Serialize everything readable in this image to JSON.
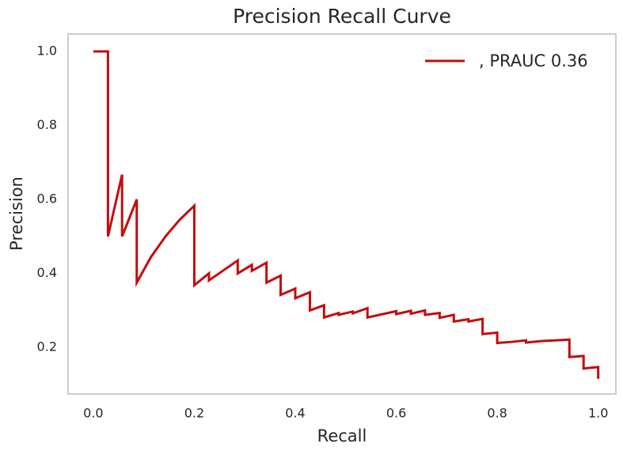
{
  "chart_data": {
    "type": "line",
    "title": "Precision Recall Curve",
    "xlabel": "Recall",
    "ylabel": "Precision",
    "x": [
      0,
      0.029,
      0.029,
      0.057,
      0.057,
      0.086,
      0.086,
      0.114,
      0.143,
      0.171,
      0.2,
      0.2,
      0.229,
      0.229,
      0.286,
      0.286,
      0.314,
      0.314,
      0.343,
      0.343,
      0.371,
      0.371,
      0.4,
      0.4,
      0.429,
      0.429,
      0.457,
      0.457,
      0.486,
      0.486,
      0.514,
      0.514,
      0.543,
      0.543,
      0.6,
      0.6,
      0.629,
      0.629,
      0.657,
      0.657,
      0.686,
      0.686,
      0.714,
      0.714,
      0.743,
      0.743,
      0.771,
      0.771,
      0.8,
      0.8,
      0.829,
      0.857,
      0.857,
      0.886,
      0.943,
      0.943,
      0.971,
      0.971,
      1.0,
      1.0
    ],
    "series": [
      {
        "name": ", PRAUC 0.36",
        "color": "#c40c0c",
        "values": [
          1,
          1,
          0.5,
          0.667,
          0.5,
          0.6,
          0.375,
          0.444,
          0.5,
          0.545,
          0.583,
          0.368,
          0.4,
          0.381,
          0.435,
          0.4,
          0.423,
          0.407,
          0.429,
          0.375,
          0.394,
          0.342,
          0.359,
          0.333,
          0.349,
          0.3,
          0.314,
          0.281,
          0.293,
          0.288,
          0.297,
          0.292,
          0.306,
          0.281,
          0.298,
          0.29,
          0.299,
          0.291,
          0.3,
          0.288,
          0.293,
          0.28,
          0.288,
          0.27,
          0.276,
          0.27,
          0.277,
          0.236,
          0.24,
          0.212,
          0.215,
          0.219,
          0.213,
          0.217,
          0.221,
          0.174,
          0.177,
          0.143,
          0.147,
          0.115
        ]
      }
    ],
    "xlim": [
      -0.05,
      1.035
    ],
    "ylim": [
      0.074,
      1.047
    ],
    "xticks": [
      {
        "value": 0,
        "label": "0.0"
      },
      0.2,
      0.4,
      0.6,
      0.8,
      {
        "value": 1,
        "label": "1.0"
      }
    ],
    "yticks": [
      0.2,
      0.4,
      0.6,
      0.8,
      {
        "value": 1,
        "label": "1.0"
      }
    ],
    "grid": false,
    "legend": "upper right"
  }
}
